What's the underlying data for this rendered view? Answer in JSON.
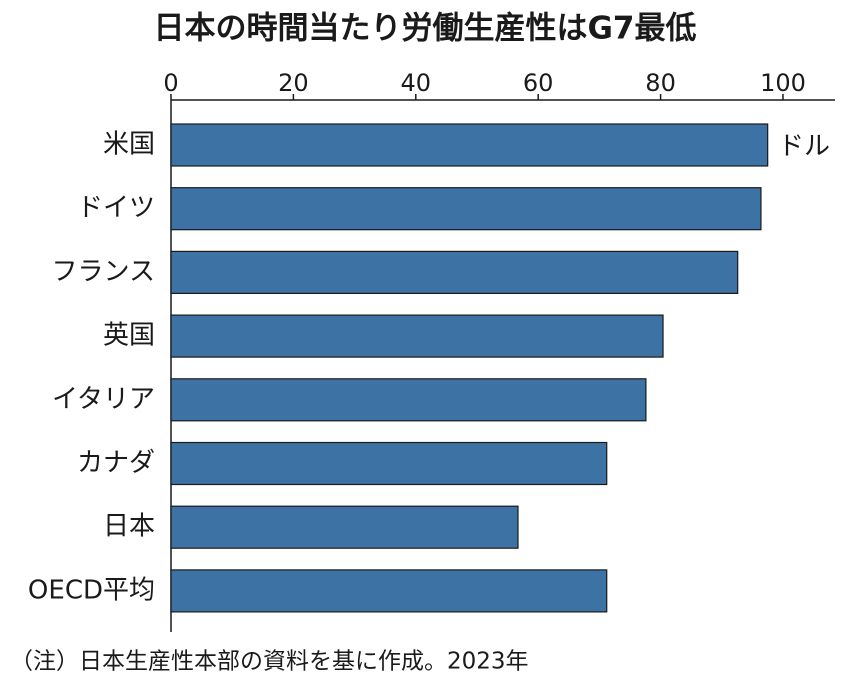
{
  "chart_data": {
    "type": "bar",
    "orientation": "horizontal",
    "title": "日本の時間当たり労働生産性はG7最低",
    "unit": "ドル",
    "note": "（注）日本生産性本部の資料を基に作成。2023年",
    "categories": [
      "米国",
      "ドイツ",
      "フランス",
      "英国",
      "イタリア",
      "カナダ",
      "日本",
      "OECD平均"
    ],
    "values": [
      97.5,
      96.4,
      92.6,
      80.4,
      77.6,
      71.2,
      56.7,
      71.2
    ],
    "color": "#3d72a4",
    "xlim": [
      0,
      108.5
    ],
    "xticks": [
      0,
      20,
      40,
      60,
      80,
      100
    ]
  }
}
